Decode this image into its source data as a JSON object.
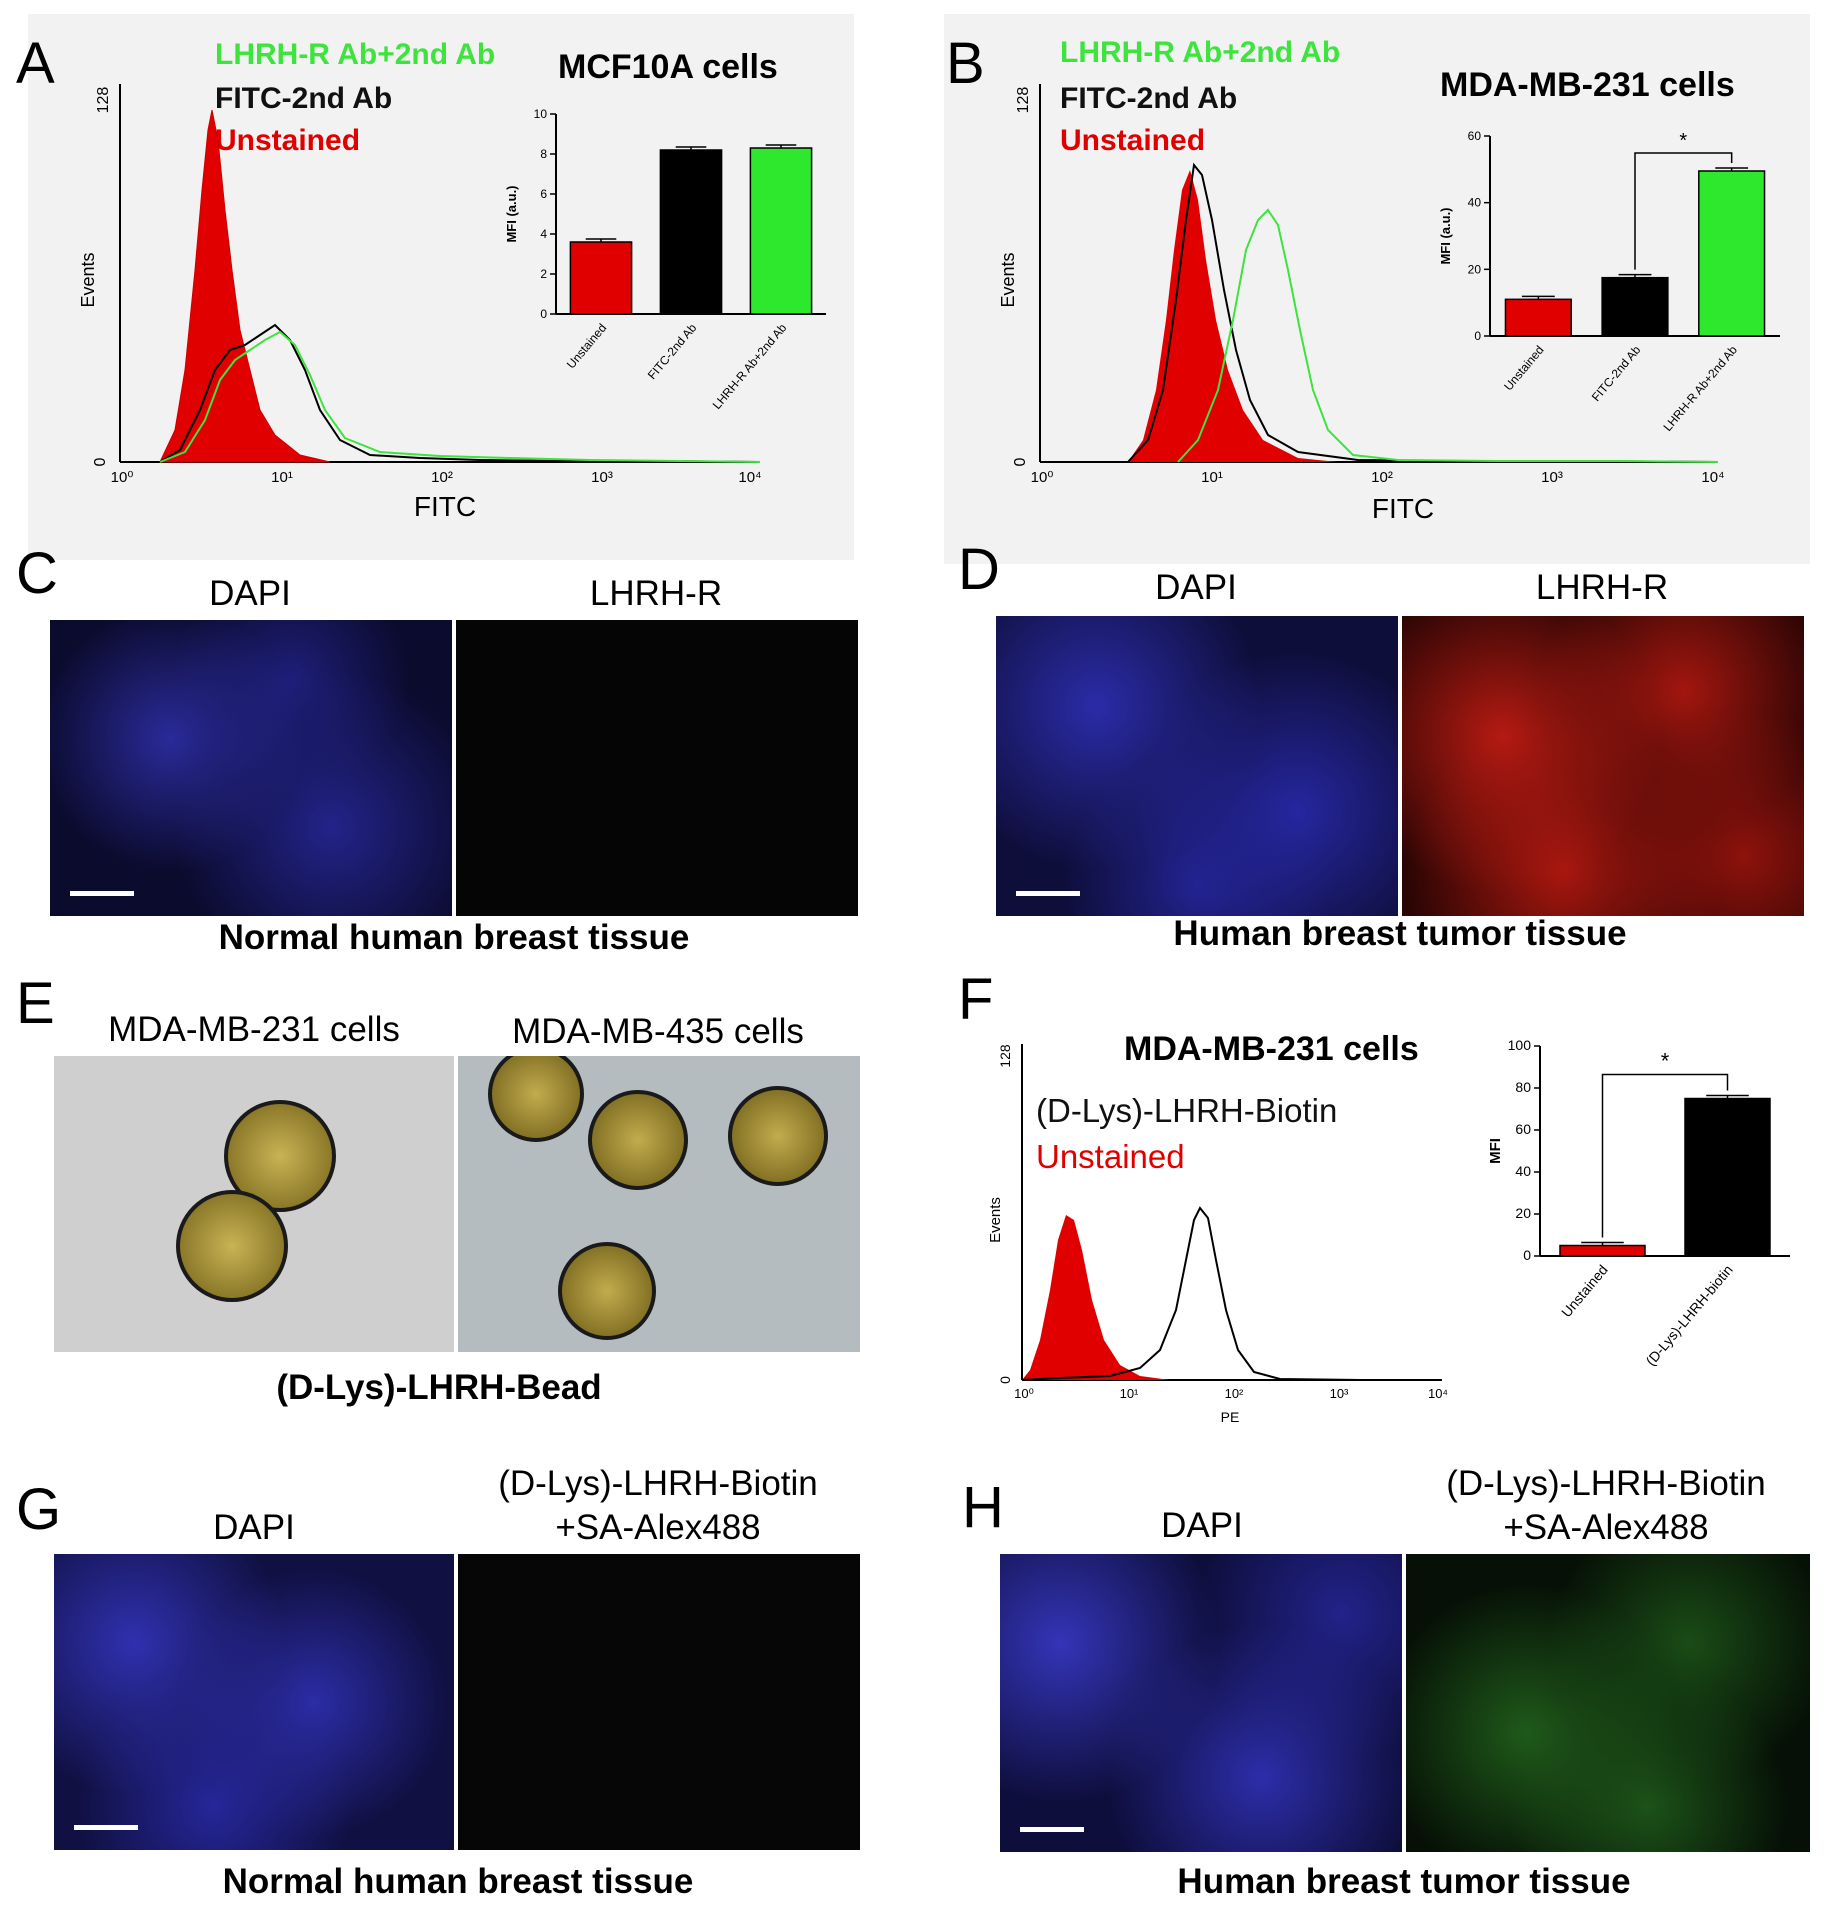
{
  "panel_a": {
    "letter": "A",
    "legend": [
      "LHRH-R Ab+2nd Ab",
      "FITC-2nd Ab",
      "Unstained"
    ],
    "legend_colors": [
      "#3ee33e",
      "#000000",
      "#e00000"
    ],
    "title": "MCF10A  cells",
    "histogram": {
      "ylabel": "Events",
      "xlabel": "FITC",
      "ymax_label": "128",
      "ymin_label": "0",
      "xticks": [
        "10⁰",
        "10¹",
        "10²",
        "10³",
        "10⁴"
      ]
    }
  },
  "panel_b": {
    "letter": "B",
    "legend": [
      "LHRH-R Ab+2nd Ab",
      "FITC-2nd Ab",
      "Unstained"
    ],
    "title": "MDA-MB-231  cells",
    "histogram": {
      "ylabel": "Events",
      "xlabel": "FITC",
      "ymax_label": "128",
      "ymin_label": "0",
      "xticks": [
        "10⁰",
        "10¹",
        "10²",
        "10³",
        "10⁴"
      ]
    },
    "sig": "*"
  },
  "panel_c": {
    "letter": "C",
    "left": "DAPI",
    "right": "LHRH-R",
    "caption": "Normal human breast tissue"
  },
  "panel_d": {
    "letter": "D",
    "left": "DAPI",
    "right": "LHRH-R",
    "caption": "Human breast tumor tissue"
  },
  "panel_e": {
    "letter": "E",
    "left": "MDA-MB-231 cells",
    "right": "MDA-MB-435 cells",
    "caption": "(D-Lys)-LHRH-Bead"
  },
  "panel_f": {
    "letter": "F",
    "title": "MDA-MB-231 cells",
    "legend": [
      "(D-Lys)-LHRH-Biotin",
      "Unstained"
    ],
    "histogram": {
      "ylabel": "Events",
      "xlabel": "PE",
      "ymax_label": "128",
      "ymin_label": "0",
      "xticks": [
        "10⁰",
        "10¹",
        "10²",
        "10³",
        "10⁴"
      ]
    },
    "sig": "*"
  },
  "panel_g": {
    "letter": "G",
    "left": "DAPI",
    "right_line1": "(D-Lys)-LHRH-Biotin",
    "right_line2": "+SA-Alex488",
    "caption": "Normal human breast tissue"
  },
  "panel_h": {
    "letter": "H",
    "left": "DAPI",
    "right_line1": "(D-Lys)-LHRH-Biotin",
    "right_line2": "+SA-Alex488",
    "caption": "Human breast tumor tissue"
  },
  "chart_data": [
    {
      "type": "bar",
      "id": "inset_a",
      "categories": [
        "Unstained",
        "FITC-2nd Ab",
        "LHRH-R Ab+2nd Ab"
      ],
      "values": [
        3.6,
        8.2,
        8.3
      ],
      "colors": [
        "#e00000",
        "#000000",
        "#2ee82e"
      ],
      "ylabel": "MFI (a.u.)",
      "ylim": [
        0,
        10
      ],
      "yticks": [
        0,
        2,
        4,
        6,
        8,
        10
      ]
    },
    {
      "type": "bar",
      "id": "inset_b",
      "categories": [
        "Unstained",
        "FITC-2nd Ab",
        "LHRH-R Ab+2nd Ab"
      ],
      "values": [
        11,
        17.5,
        49.5
      ],
      "colors": [
        "#e00000",
        "#000000",
        "#2ee82e"
      ],
      "ylabel": "MFI (a.u.)",
      "ylim": [
        0,
        60
      ],
      "yticks": [
        0,
        20,
        40,
        60
      ]
    },
    {
      "type": "bar",
      "id": "inset_f",
      "categories": [
        "Unstained",
        "(D-Lys)-LHRH-biotin"
      ],
      "values": [
        5,
        75
      ],
      "colors": [
        "#e00000",
        "#000000"
      ],
      "ylabel": "MFI",
      "ylim": [
        0,
        100
      ],
      "yticks": [
        0,
        20,
        40,
        60,
        80,
        100
      ]
    }
  ]
}
